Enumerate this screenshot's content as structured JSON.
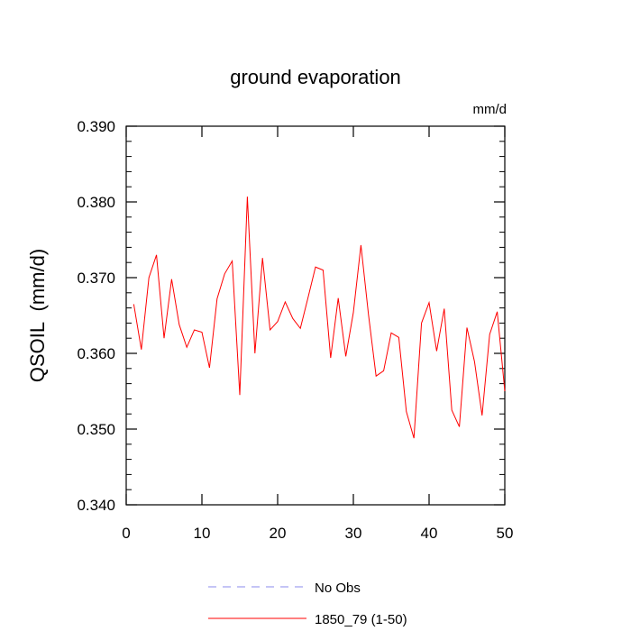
{
  "chart_data": {
    "type": "line",
    "title": "ground evaporation",
    "units_label": "mm/d",
    "ylabel": "QSOIL  (mm/d)",
    "xlabel": "",
    "xlim": [
      0,
      50
    ],
    "ylim": [
      0.34,
      0.39
    ],
    "x_ticks": [
      0,
      10,
      20,
      30,
      40,
      50
    ],
    "x_tick_labels": [
      "0",
      "10",
      "20",
      "30",
      "40",
      "50"
    ],
    "y_ticks": [
      0.34,
      0.35,
      0.36,
      0.37,
      0.38,
      0.39
    ],
    "y_tick_labels": [
      "0.340",
      "0.350",
      "0.360",
      "0.370",
      "0.380",
      "0.390"
    ],
    "grid": false,
    "legend_position": "bottom",
    "series": [
      {
        "name": "1850_79 (1-50)",
        "color": "#ff0000",
        "dash": "solid",
        "x": [
          1,
          2,
          3,
          4,
          5,
          6,
          7,
          8,
          9,
          10,
          11,
          12,
          13,
          14,
          15,
          16,
          17,
          18,
          19,
          20,
          21,
          22,
          23,
          24,
          25,
          26,
          27,
          28,
          29,
          30,
          31,
          32,
          33,
          34,
          35,
          36,
          37,
          38,
          39,
          40,
          41,
          42,
          43,
          44,
          45,
          46,
          47,
          48,
          49,
          50
        ],
        "values": [
          0.3665,
          0.3605,
          0.37,
          0.373,
          0.362,
          0.3698,
          0.3638,
          0.3608,
          0.3631,
          0.3628,
          0.3581,
          0.3672,
          0.3705,
          0.3722,
          0.3545,
          0.3807,
          0.36,
          0.3726,
          0.3631,
          0.3642,
          0.3668,
          0.3646,
          0.3633,
          0.3673,
          0.3714,
          0.371,
          0.3594,
          0.3673,
          0.3596,
          0.3654,
          0.3743,
          0.3651,
          0.357,
          0.3577,
          0.3627,
          0.3621,
          0.3523,
          0.3488,
          0.364,
          0.3667,
          0.3603,
          0.3659,
          0.3525,
          0.3503,
          0.3634,
          0.3589,
          0.3518,
          0.3625,
          0.3655,
          0.355
        ]
      }
    ],
    "legend": [
      {
        "name": "No Obs",
        "color": "#8888ee",
        "dash": "dashed"
      },
      {
        "name": "1850_79 (1-50)",
        "color": "#ff0000",
        "dash": "solid"
      }
    ]
  }
}
